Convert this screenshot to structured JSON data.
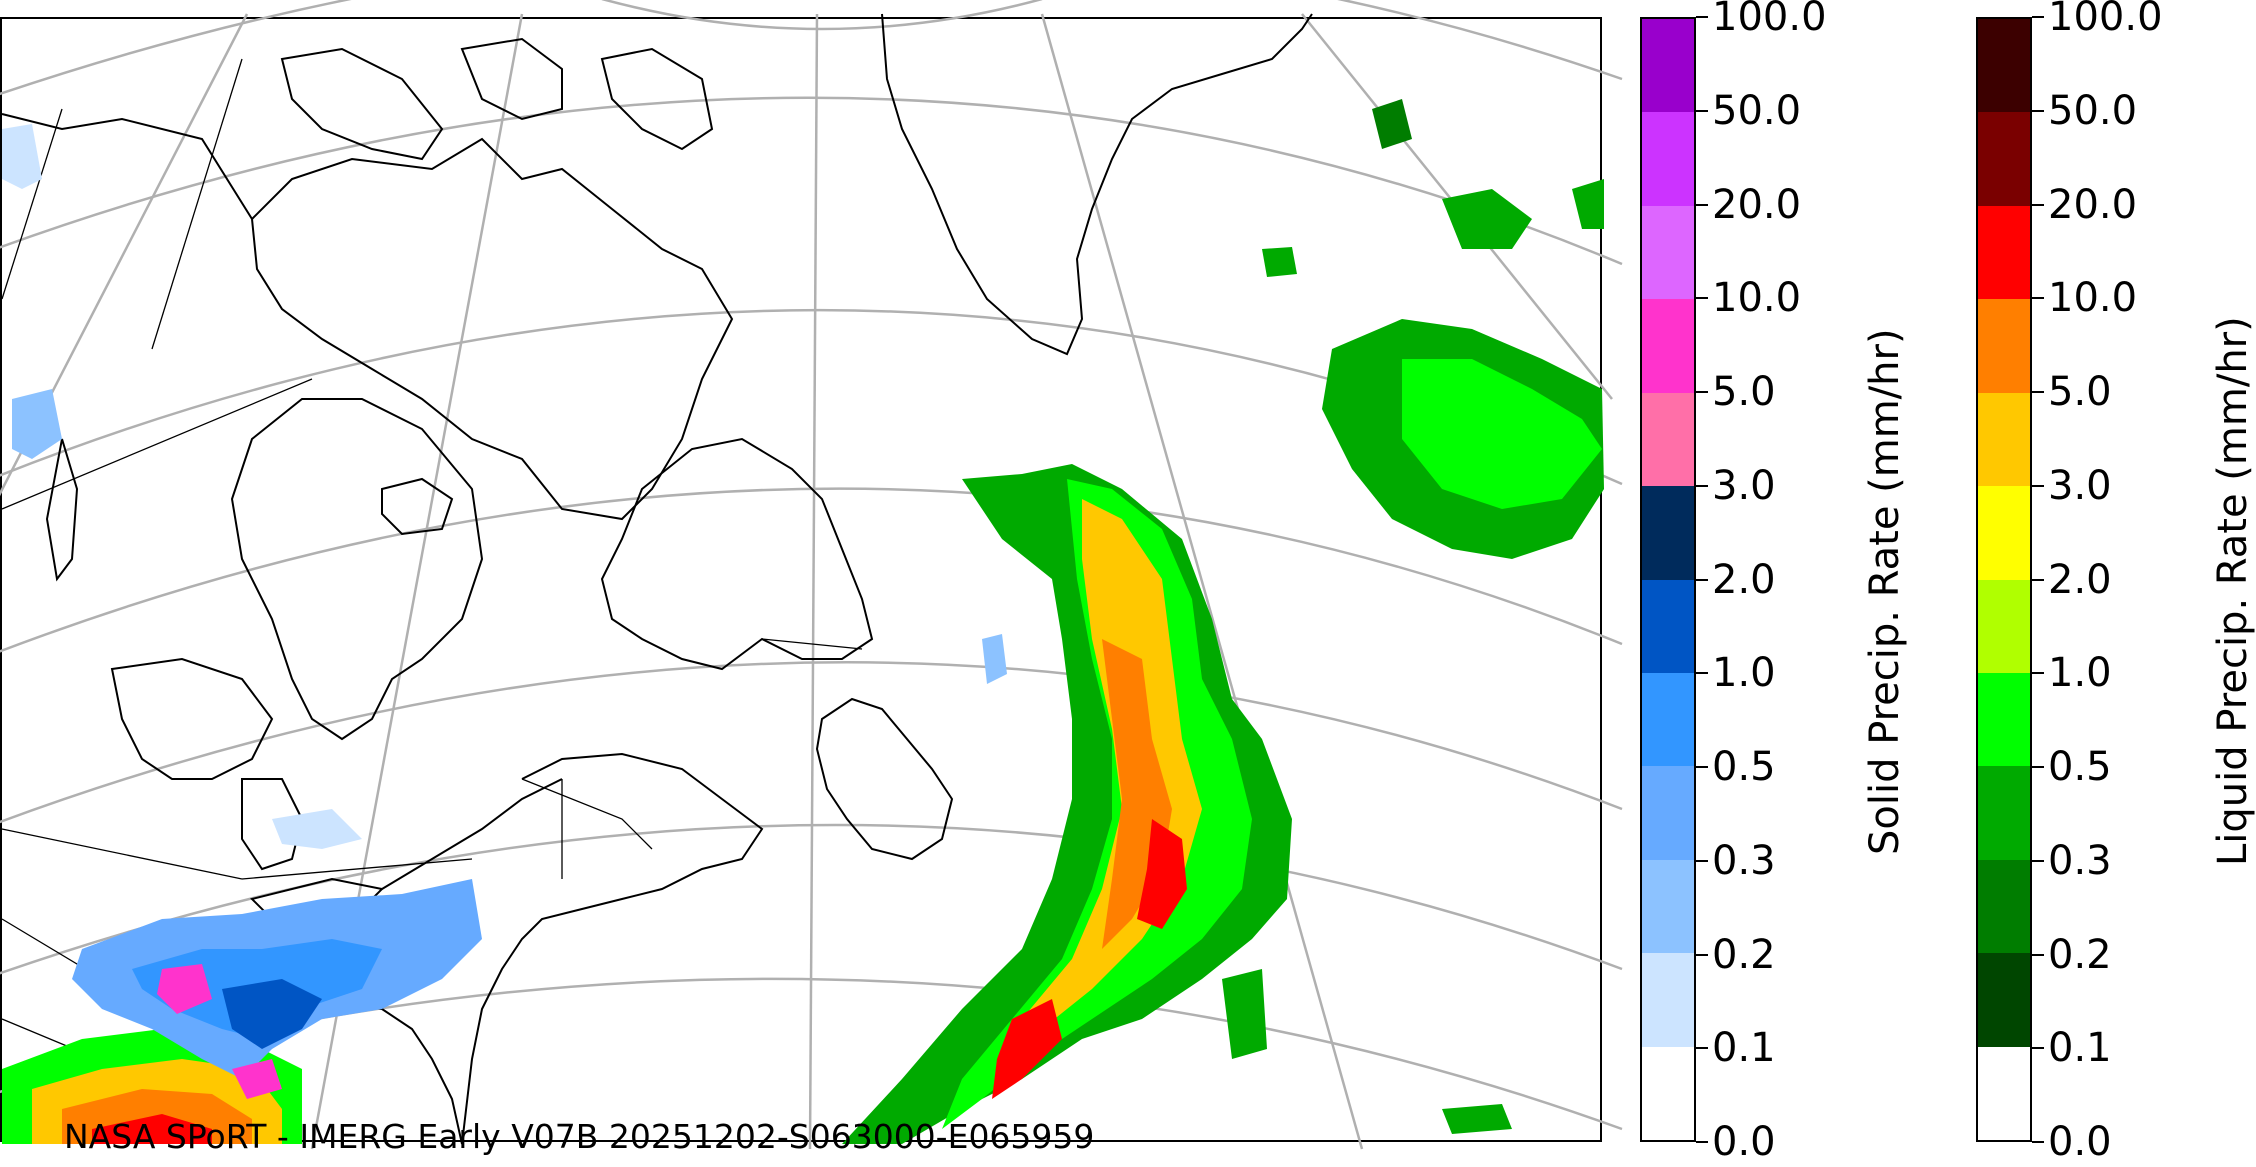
{
  "map": {
    "credit": "NASA SPoRT - IMERG Early V07B 20251202-S063000-E065959",
    "colors": {
      "border": "#000000",
      "graticule": "#b0b0b0",
      "coast": "#000000"
    }
  },
  "colorbars": [
    {
      "label": "Solid Precip. Rate (mm/hr)",
      "ticks": [
        "100.0",
        "50.0",
        "20.0",
        "10.0",
        "5.0",
        "3.0",
        "2.0",
        "1.0",
        "0.5",
        "0.3",
        "0.2",
        "0.1",
        "0.0"
      ],
      "colors": [
        "#9900cc",
        "#cc33ff",
        "#dd66ff",
        "#ff33cc",
        "#ff6fa8",
        "#002b5c",
        "#0055c4",
        "#3296ff",
        "#66aaff",
        "#8cc2ff",
        "#cce4ff",
        "#ffffff"
      ]
    },
    {
      "label": "Liquid Precip. Rate (mm/hr)",
      "ticks": [
        "100.0",
        "50.0",
        "20.0",
        "10.0",
        "5.0",
        "3.0",
        "2.0",
        "1.0",
        "0.5",
        "0.3",
        "0.2",
        "0.1",
        "0.0"
      ],
      "colors": [
        "#3c0000",
        "#7a0000",
        "#ff0000",
        "#ff7f00",
        "#ffc800",
        "#ffff00",
        "#b0ff00",
        "#00ff00",
        "#00aa00",
        "#007d00",
        "#004600",
        "#ffffff"
      ]
    }
  ]
}
